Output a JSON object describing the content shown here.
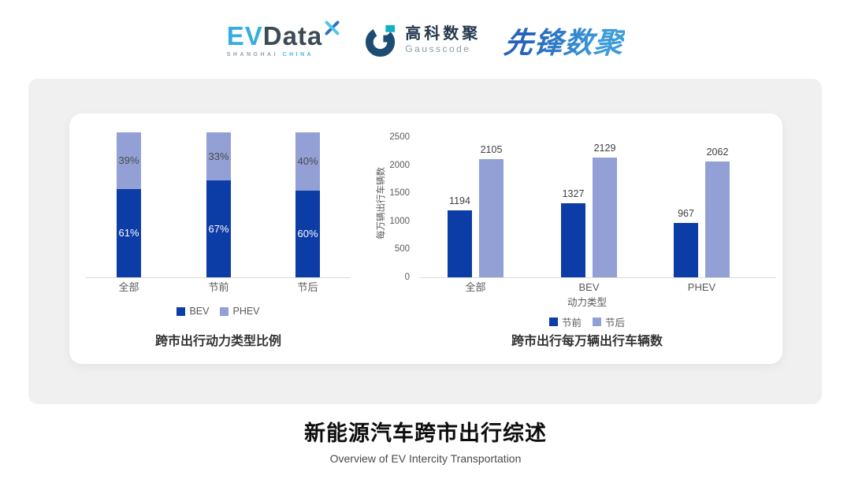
{
  "header": {
    "evdata": {
      "ev": "EV",
      "data": "Data",
      "sub_left": "SHANGHAI",
      "sub_right": "CHINA"
    },
    "gausscode": {
      "cn": "高科数聚",
      "en": "Gausscode"
    },
    "xianfeng": {
      "text": "先锋数聚"
    },
    "icons": {
      "evdata_x": "crossed-petals-x",
      "gausscode_g": "g-ring-mark"
    }
  },
  "colors": {
    "series_dark_blue": "#0C3CA5",
    "series_light_blue": "#93A0D5",
    "card_bg": "#F0F0F1",
    "panel_bg": "#FFFFFF",
    "evdata_blue": "#35ADE3",
    "evdata_dark": "#3D4A56",
    "gausscode_navy": "#1C4C72",
    "gausscode_teal": "#12AFC8",
    "xianfeng_blue": "#2E7AC8",
    "axis_text": "#595959",
    "title_text": "#333333"
  },
  "chart_data": [
    {
      "type": "bar",
      "variant": "stacked-percent",
      "title": "跨市出行动力类型比例",
      "categories": [
        "全部",
        "节前",
        "节后"
      ],
      "series": [
        {
          "name": "BEV",
          "color": "#0C3CA5",
          "label_color": "#FFFFFF",
          "values": [
            61,
            67,
            60
          ]
        },
        {
          "name": "PHEV",
          "color": "#93A0D5",
          "label_color": "#4A4A4A",
          "values": [
            39,
            33,
            40
          ]
        }
      ],
      "value_suffix": "%",
      "ylim": [
        0,
        100
      ],
      "legend_position": "bottom",
      "grid": false
    },
    {
      "type": "bar",
      "variant": "grouped",
      "title": "跨市出行每万辆出行车辆数",
      "xlabel": "动力类型",
      "ylabel": "每万辆出行车辆数",
      "categories": [
        "全部",
        "BEV",
        "PHEV"
      ],
      "series": [
        {
          "name": "节前",
          "color": "#0C3CA5",
          "values": [
            1194,
            1327,
            967
          ]
        },
        {
          "name": "节后",
          "color": "#93A0D5",
          "values": [
            2105,
            2129,
            2062
          ]
        }
      ],
      "yticks": [
        0,
        500,
        1000,
        1500,
        2000,
        2500
      ],
      "ylim": [
        0,
        2500
      ],
      "legend_position": "bottom",
      "grid": false
    }
  ],
  "footer": {
    "title": "新能源汽车跨市出行综述",
    "subtitle": "Overview of EV Intercity Transportation"
  }
}
